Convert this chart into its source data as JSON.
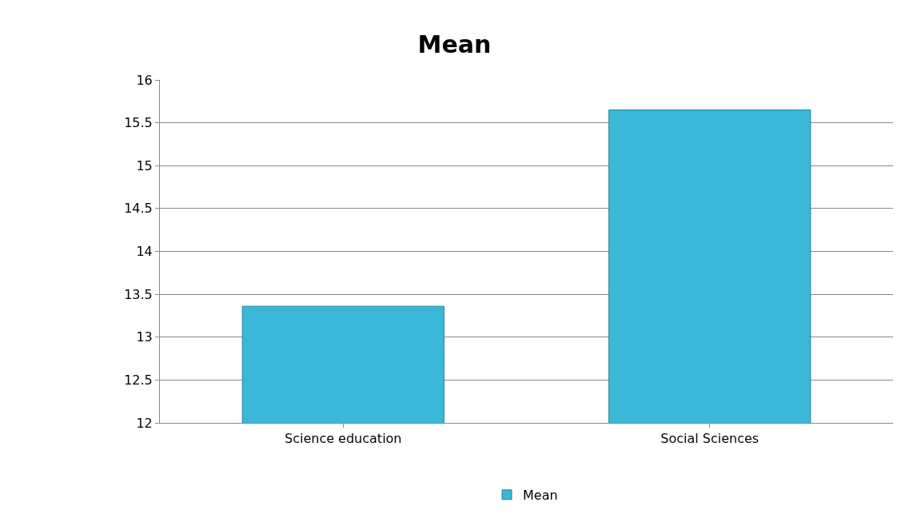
{
  "chart_data": {
    "type": "bar",
    "title": "Mean",
    "categories": [
      "Science education",
      "Social Sciences"
    ],
    "series": [
      {
        "name": "Mean",
        "color": "#3bb8d8",
        "values": [
          13.36,
          15.65
        ]
      }
    ],
    "ylim": [
      12,
      16
    ],
    "yticks": [
      12,
      12.5,
      13,
      13.5,
      14,
      14.5,
      15,
      15.5,
      16
    ],
    "grid": "y",
    "legend": "bottom"
  }
}
